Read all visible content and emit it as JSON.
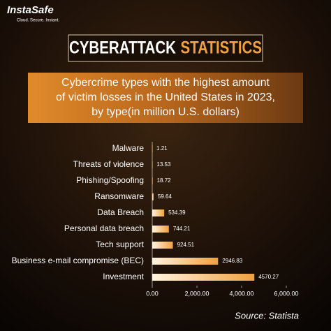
{
  "chart_data": {
    "type": "bar",
    "orientation": "horizontal",
    "brand": "InstaSafe",
    "tagline": "Cloud. Secure. Instant.",
    "title": "CYBERATTACK",
    "title_highlight": "STATISTICS",
    "subtitle": [
      "Cybercrime types with the highest amount",
      "of victim losses in the United States in 2023,",
      "by type(in million U.S. dollars)"
    ],
    "categories": [
      "Malware",
      "Threats of violence",
      "Phishing/Spoofing",
      "Ransomware",
      "Data Breach",
      "Personal data breach",
      "Tech support",
      "Business e-mail compromise (BEC)",
      "Investment"
    ],
    "values": [
      1.21,
      13.53,
      18.72,
      59.64,
      534.39,
      744.21,
      924.51,
      2946.83,
      4570.27
    ],
    "color": "#f0a040",
    "xlim": [
      0,
      6000
    ],
    "xticks": [
      {
        "value": 0,
        "label": "0.00"
      },
      {
        "value": 2000,
        "label": "2,000.00"
      },
      {
        "value": 4000,
        "label": "4,000.00"
      },
      {
        "value": 6000,
        "label": "6,000.00"
      }
    ],
    "source": "Source:  Statista"
  }
}
